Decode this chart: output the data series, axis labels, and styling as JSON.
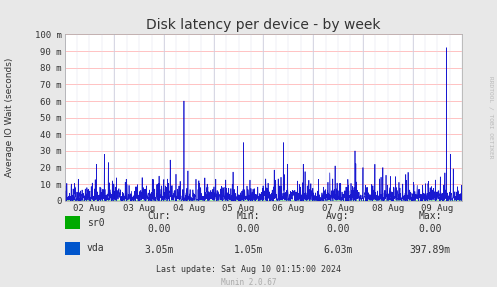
{
  "title": "Disk latency per device - by week",
  "ylabel": "Average IO Wait (seconds)",
  "background_color": "#e8e8e8",
  "plot_bg_color": "#ffffff",
  "ytick_labels": [
    "0",
    "10 m",
    "20 m",
    "30 m",
    "40 m",
    "50 m",
    "60 m",
    "70 m",
    "80 m",
    "90 m",
    "100 m"
  ],
  "ytick_values": [
    0,
    0.01,
    0.02,
    0.03,
    0.04,
    0.05,
    0.06,
    0.07,
    0.08,
    0.09,
    0.1
  ],
  "xtick_labels": [
    "02 Aug",
    "03 Aug",
    "04 Aug",
    "05 Aug",
    "06 Aug",
    "07 Aug",
    "08 Aug",
    "09 Aug"
  ],
  "xmin": 0,
  "xmax": 1,
  "ymin": 0,
  "ymax": 0.1,
  "line_color_vda": "#0000cc",
  "line_color_sr0": "#00cc00",
  "legend_items": [
    {
      "label": "sr0",
      "color": "#00aa00"
    },
    {
      "label": "vda",
      "color": "#0055cc"
    }
  ],
  "footer_text": "Last update: Sat Aug 10 01:15:00 2024",
  "munin_text": "Munin 2.0.67",
  "stats": {
    "headers": [
      "Cur:",
      "Min:",
      "Avg:",
      "Max:"
    ],
    "sr0": [
      "0.00",
      "0.00",
      "0.00",
      "0.00"
    ],
    "vda": [
      "3.05m",
      "1.05m",
      "6.03m",
      "397.89m"
    ]
  },
  "watermark": "RRDTOOL / TOBI OETIKER"
}
